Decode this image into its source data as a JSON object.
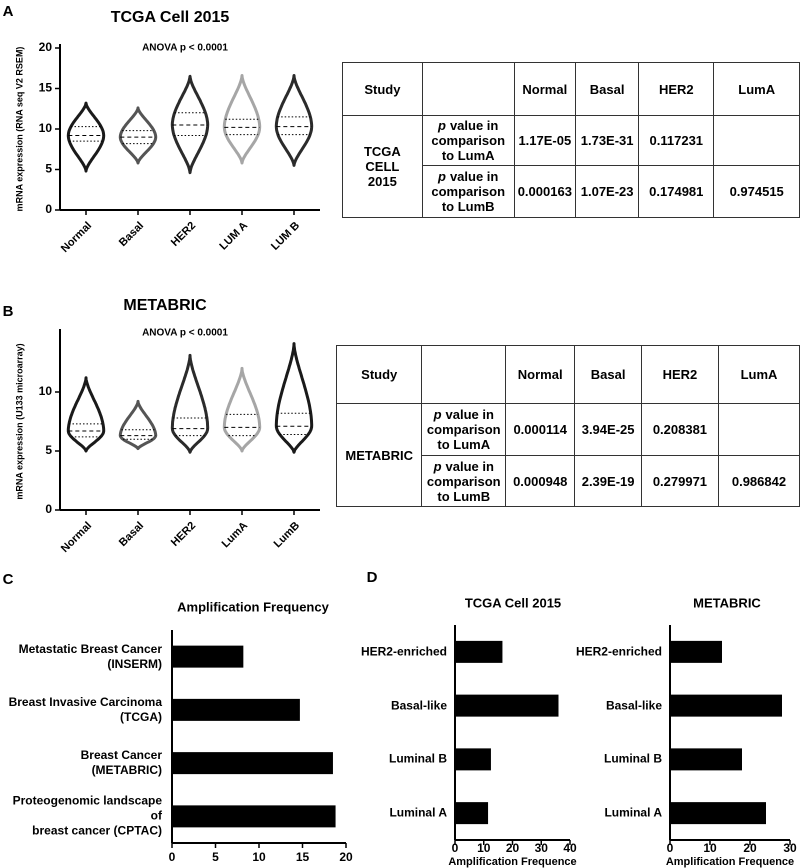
{
  "chart_data": [
    {
      "type": "violin",
      "panel": "A",
      "title": "TCGA Cell 2015",
      "annotation": "ANOVA  p < 0.0001",
      "y_label": "mRNA expression (RNA seq V2 RSEM)",
      "categories": [
        "Normal",
        "Basal",
        "HER2",
        "LUM A",
        "LUM B"
      ],
      "colors": [
        "#1a1a1a",
        "#555555",
        "#2b2b2b",
        "#a6a6a6",
        "#2b2b2b"
      ],
      "stats": [
        {
          "min": 4.8,
          "q1": 8.5,
          "median": 9.2,
          "q3": 10.3,
          "max": 13.2
        },
        {
          "min": 5.8,
          "q1": 8.2,
          "median": 9.0,
          "q3": 9.8,
          "max": 12.6
        },
        {
          "min": 4.6,
          "q1": 9.2,
          "median": 10.5,
          "q3": 12.0,
          "max": 16.5
        },
        {
          "min": 5.8,
          "q1": 9.3,
          "median": 10.2,
          "q3": 11.2,
          "max": 16.6
        },
        {
          "min": 5.5,
          "q1": 9.3,
          "median": 10.3,
          "q3": 11.5,
          "max": 16.6
        }
      ],
      "ylim": [
        0,
        20
      ],
      "yticks": [
        0,
        5,
        10,
        15,
        20
      ]
    },
    {
      "type": "violin",
      "panel": "B",
      "title": "METABRIC",
      "annotation": "ANOVA  p < 0.0001",
      "y_label": "mRNA expression (U133 microarray)",
      "categories": [
        "Normal",
        "Basal",
        "HER2",
        "LumA",
        "LumB"
      ],
      "colors": [
        "#1a1a1a",
        "#555555",
        "#2b2b2b",
        "#a6a6a6",
        "#1a1a1a"
      ],
      "stats": [
        {
          "min": 5.0,
          "q1": 6.2,
          "median": 6.7,
          "q3": 7.3,
          "max": 11.2
        },
        {
          "min": 5.2,
          "q1": 6.0,
          "median": 6.3,
          "q3": 6.8,
          "max": 9.2
        },
        {
          "min": 4.9,
          "q1": 6.3,
          "median": 6.9,
          "q3": 7.8,
          "max": 13.1
        },
        {
          "min": 5.0,
          "q1": 6.3,
          "median": 7.0,
          "q3": 8.1,
          "max": 12.0
        },
        {
          "min": 4.9,
          "q1": 6.4,
          "median": 7.1,
          "q3": 8.2,
          "max": 14.1
        }
      ],
      "ylim": [
        0,
        15
      ],
      "yticks": [
        0,
        5,
        10
      ]
    },
    {
      "type": "bar",
      "panel": "C",
      "orientation": "horizontal",
      "title": "Amplification Frequency",
      "categories": [
        "Metastatic Breast Cancer\n(INSERM)",
        "Breast Invasive Carcinoma\n(TCGA)",
        "Breast Cancer\n(METABRIC)",
        "Proteogenomic landscape of\nbreast cancer (CPTAC)"
      ],
      "values": [
        8.2,
        14.7,
        18.5,
        18.8
      ],
      "color": "#000000",
      "xlim": [
        0,
        20
      ],
      "xticks": [
        0,
        5,
        10,
        15,
        20
      ]
    },
    {
      "type": "bar",
      "panel": "D",
      "orientation": "horizontal",
      "title": "TCGA Cell 2015",
      "x_label": "Amplification  Frequence",
      "categories": [
        "HER2-enriched",
        "Basal-like",
        "Luminal B",
        "Luminal A"
      ],
      "values": [
        16.5,
        36,
        12.5,
        11.5
      ],
      "color": "#000000",
      "xlim": [
        0,
        40
      ],
      "xticks": [
        0,
        10,
        20,
        30,
        40
      ]
    },
    {
      "type": "bar",
      "orientation": "horizontal",
      "title": "METABRIC",
      "x_label": "Amplification  Frequence",
      "categories": [
        "HER2-enriched",
        "Basal-like",
        "Luminal B",
        "Luminal A"
      ],
      "values": [
        13,
        28,
        18,
        24
      ],
      "color": "#000000",
      "xlim": [
        0,
        30
      ],
      "xticks": [
        0,
        10,
        20,
        30
      ]
    }
  ],
  "tables": [
    {
      "study_header": "Study",
      "columns": [
        "Normal",
        "Basal",
        "HER2",
        "LumA"
      ],
      "study": "TCGA\nCELL\n2015",
      "rows": [
        {
          "label_italic": "p",
          "label": "value in\ncomparison\nto LumA",
          "values": [
            "1.17E-05",
            "1.73E-31",
            "0.117231",
            null
          ]
        },
        {
          "label_italic": "p",
          "label": "value in\ncomparison\nto LumB",
          "values": [
            "0.000163",
            "1.07E-23",
            "0.174981",
            "0.974515"
          ]
        }
      ]
    },
    {
      "study_header": "Study",
      "columns": [
        "Normal",
        "Basal",
        "HER2",
        "LumA"
      ],
      "study": "METABRIC",
      "rows": [
        {
          "label_italic": "p",
          "label": "value in\ncomparison\nto LumA",
          "values": [
            "0.000114",
            "3.94E-25",
            "0.208381",
            null
          ]
        },
        {
          "label_italic": "p",
          "label": "value in\ncomparison\nto LumB",
          "values": [
            "0.000948",
            "2.39E-19",
            "0.279971",
            "0.986842"
          ]
        }
      ]
    }
  ]
}
